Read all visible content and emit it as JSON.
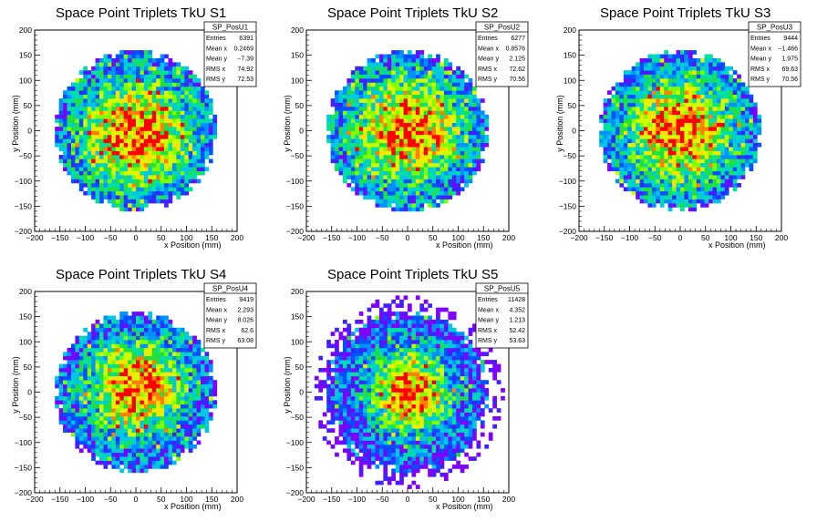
{
  "chart_data": [
    {
      "type": "heatmap",
      "title": "Space Point Triplets TkU S1",
      "xlabel": "x Position (mm)",
      "ylabel": "y Position (mm)",
      "xlim": [
        -200,
        200
      ],
      "ylim": [
        -200,
        200
      ],
      "xticks": [
        "−200",
        "−150",
        "−100",
        "−50",
        "0",
        "50",
        "100",
        "150",
        "200"
      ],
      "yticks": [
        "−200",
        "−150",
        "−100",
        "−50",
        "0",
        "50",
        "100",
        "150",
        "200"
      ],
      "distribution": {
        "center_x": 0.25,
        "center_y": -7.39,
        "radius": 160,
        "rms_x": 74.92,
        "rms_y": 72.53,
        "halo": false
      },
      "stats": {
        "name": "SP_PosU1",
        "rows": [
          {
            "label": "Entries",
            "value": "6391"
          },
          {
            "label": "Mean x",
            "value": "0.2469"
          },
          {
            "label": "Mean y",
            "value": "−7.39"
          },
          {
            "label": "RMS x",
            "value": "74.92"
          },
          {
            "label": "RMS y",
            "value": "72.53"
          }
        ]
      }
    },
    {
      "type": "heatmap",
      "title": "Space Point Triplets TkU S2",
      "xlabel": "x Position (mm)",
      "ylabel": "y Position (mm)",
      "xlim": [
        -200,
        200
      ],
      "ylim": [
        -200,
        200
      ],
      "xticks": [
        "−200",
        "−150",
        "−100",
        "−50",
        "0",
        "50",
        "100",
        "150",
        "200"
      ],
      "yticks": [
        "−200",
        "−150",
        "−100",
        "−50",
        "0",
        "50",
        "100",
        "150",
        "200"
      ],
      "distribution": {
        "center_x": 0.8576,
        "center_y": 2.125,
        "radius": 160,
        "rms_x": 72.62,
        "rms_y": 70.56,
        "halo": false
      },
      "stats": {
        "name": "SP_PosU2",
        "rows": [
          {
            "label": "Entries",
            "value": "6277"
          },
          {
            "label": "Mean x",
            "value": "0.8576"
          },
          {
            "label": "Mean y",
            "value": "2.125"
          },
          {
            "label": "RMS x",
            "value": "72.62"
          },
          {
            "label": "RMS y",
            "value": "70.56"
          }
        ]
      }
    },
    {
      "type": "heatmap",
      "title": "Space Point Triplets TkU S3",
      "xlabel": "x Position (mm)",
      "ylabel": "y Position (mm)",
      "xlim": [
        -200,
        200
      ],
      "ylim": [
        -200,
        200
      ],
      "xticks": [
        "−200",
        "−150",
        "−100",
        "−50",
        "0",
        "50",
        "100",
        "150",
        "200"
      ],
      "yticks": [
        "−200",
        "−150",
        "−100",
        "−50",
        "0",
        "50",
        "100",
        "150",
        "200"
      ],
      "distribution": {
        "center_x": -1.466,
        "center_y": 1.975,
        "radius": 160,
        "rms_x": 69.63,
        "rms_y": 70.56,
        "halo": false
      },
      "stats": {
        "name": "SP_PosU3",
        "rows": [
          {
            "label": "Entries",
            "value": "9444"
          },
          {
            "label": "Mean x",
            "value": "−1.466"
          },
          {
            "label": "Mean y",
            "value": "1.975"
          },
          {
            "label": "RMS x",
            "value": "69.63"
          },
          {
            "label": "RMS y",
            "value": "70.56"
          }
        ]
      }
    },
    {
      "type": "heatmap",
      "title": "Space Point Triplets TkU S4",
      "xlabel": "x Position (mm)",
      "ylabel": "y Position (mm)",
      "xlim": [
        -200,
        200
      ],
      "ylim": [
        -200,
        200
      ],
      "xticks": [
        "−200",
        "−150",
        "−100",
        "−50",
        "0",
        "50",
        "100",
        "150",
        "200"
      ],
      "yticks": [
        "−200",
        "−150",
        "−100",
        "−50",
        "0",
        "50",
        "100",
        "150",
        "200"
      ],
      "distribution": {
        "center_x": 2.293,
        "center_y": 8.026,
        "radius": 160,
        "rms_x": 62.6,
        "rms_y": 63.08,
        "halo": false
      },
      "stats": {
        "name": "SP_PosU4",
        "rows": [
          {
            "label": "Entries",
            "value": "9419"
          },
          {
            "label": "Mean x",
            "value": "2.293"
          },
          {
            "label": "Mean y",
            "value": "8.026"
          },
          {
            "label": "RMS x",
            "value": "62.6"
          },
          {
            "label": "RMS y",
            "value": "63.08"
          }
        ]
      }
    },
    {
      "type": "heatmap",
      "title": "Space Point Triplets TkU S5",
      "xlabel": "x Position (mm)",
      "ylabel": "y Position (mm)",
      "xlim": [
        -200,
        200
      ],
      "ylim": [
        -200,
        200
      ],
      "xticks": [
        "−200",
        "−150",
        "−100",
        "−50",
        "0",
        "50",
        "100",
        "150",
        "200"
      ],
      "yticks": [
        "−200",
        "−150",
        "−100",
        "−50",
        "0",
        "50",
        "100",
        "150",
        "200"
      ],
      "distribution": {
        "center_x": 4.352,
        "center_y": 1.213,
        "radius": 160,
        "rms_x": 52.42,
        "rms_y": 53.63,
        "halo": true
      },
      "stats": {
        "name": "SP_PosU5",
        "rows": [
          {
            "label": "Entries",
            "value": "11428"
          },
          {
            "label": "Mean x",
            "value": "4.352"
          },
          {
            "label": "Mean y",
            "value": "1.213"
          },
          {
            "label": "RMS x",
            "value": "52.42"
          },
          {
            "label": "RMS y",
            "value": "53.63"
          }
        ]
      }
    }
  ],
  "colors": {
    "palette": [
      "#8000ff",
      "#4020ff",
      "#0050ff",
      "#0090ff",
      "#00c8e0",
      "#00e0a0",
      "#20e040",
      "#80ff00",
      "#d0ff00",
      "#ffe000",
      "#ff8000",
      "#ff0000"
    ]
  }
}
